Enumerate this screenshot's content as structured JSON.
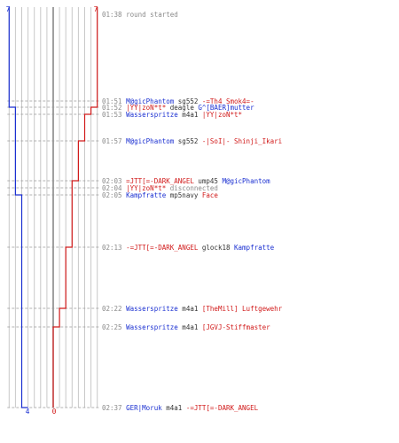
{
  "chart_data": {
    "type": "line",
    "title": "",
    "xlabel": "",
    "ylabel": "",
    "colors": {
      "blue": "#1a2fd1",
      "red": "#d11a1a",
      "time": "#8a8a8a",
      "msg": "#8a8a8a",
      "weapon": "#333333",
      "grid": "#c8c8c8",
      "center": "#777777"
    },
    "start_labels": {
      "left": "7",
      "right": "7"
    },
    "end_labels": {
      "left": "4",
      "right": "0"
    },
    "series": [
      {
        "values": [
          7,
          7,
          6,
          6,
          6,
          6,
          6,
          5,
          5,
          5,
          5,
          4
        ]
      },
      {
        "values": [
          7,
          7,
          6,
          5,
          4,
          3,
          3,
          3,
          2,
          1,
          0,
          0
        ]
      }
    ],
    "events": [
      {
        "time": "01:38",
        "message": "round started"
      },
      {
        "time": "01:51",
        "actor": "M@gicPhantom",
        "actor_team": "blue",
        "weapon": "sg552",
        "target": "-=Th4 Smok4=-",
        "target_team": "red"
      },
      {
        "time": "01:52",
        "actor": "|YY|zoN*t*",
        "actor_team": "red",
        "weapon": "deagle",
        "target": "G^[BAER]mutter",
        "target_team": "blue"
      },
      {
        "time": "01:53",
        "actor": "Wasserspritze",
        "actor_team": "blue",
        "weapon": "m4a1",
        "target": "|YY|zoN*t*",
        "target_team": "red"
      },
      {
        "time": "01:57",
        "actor": "M@gicPhantom",
        "actor_team": "blue",
        "weapon": "sg552",
        "target": "-|SoI|- Shinji_Ikari",
        "target_team": "red"
      },
      {
        "time": "02:03",
        "actor": "=JTT[=-DARK_ANGEL",
        "actor_team": "red",
        "weapon": "ump45",
        "target": "M@gicPhantom",
        "target_team": "blue"
      },
      {
        "time": "02:04",
        "actor": "|YY|zoN*t*",
        "actor_team": "red",
        "message": "disconnected"
      },
      {
        "time": "02:05",
        "actor": "Kampfratte",
        "actor_team": "blue",
        "weapon": "mp5navy",
        "target": "Face",
        "target_team": "red"
      },
      {
        "time": "02:13",
        "actor": "-=JTT[=-DARK_ANGEL",
        "actor_team": "red",
        "weapon": "glock18",
        "target": "Kampfratte",
        "target_team": "blue"
      },
      {
        "time": "02:22",
        "actor": "Wasserspritze",
        "actor_team": "blue",
        "weapon": "m4a1",
        "target": "[TheMill] Luftgewehr",
        "target_team": "red"
      },
      {
        "time": "02:25",
        "actor": "Wasserspritze",
        "actor_team": "blue",
        "weapon": "m4a1",
        "target": "[JGVJ-Stiffmaster",
        "target_team": "red"
      },
      {
        "time": "02:37",
        "actor": "GER|Moruk",
        "actor_team": "blue",
        "weapon": "m4a1",
        "target": "-=JTT[=-DARK_ANGEL",
        "target_team": "red"
      }
    ]
  }
}
